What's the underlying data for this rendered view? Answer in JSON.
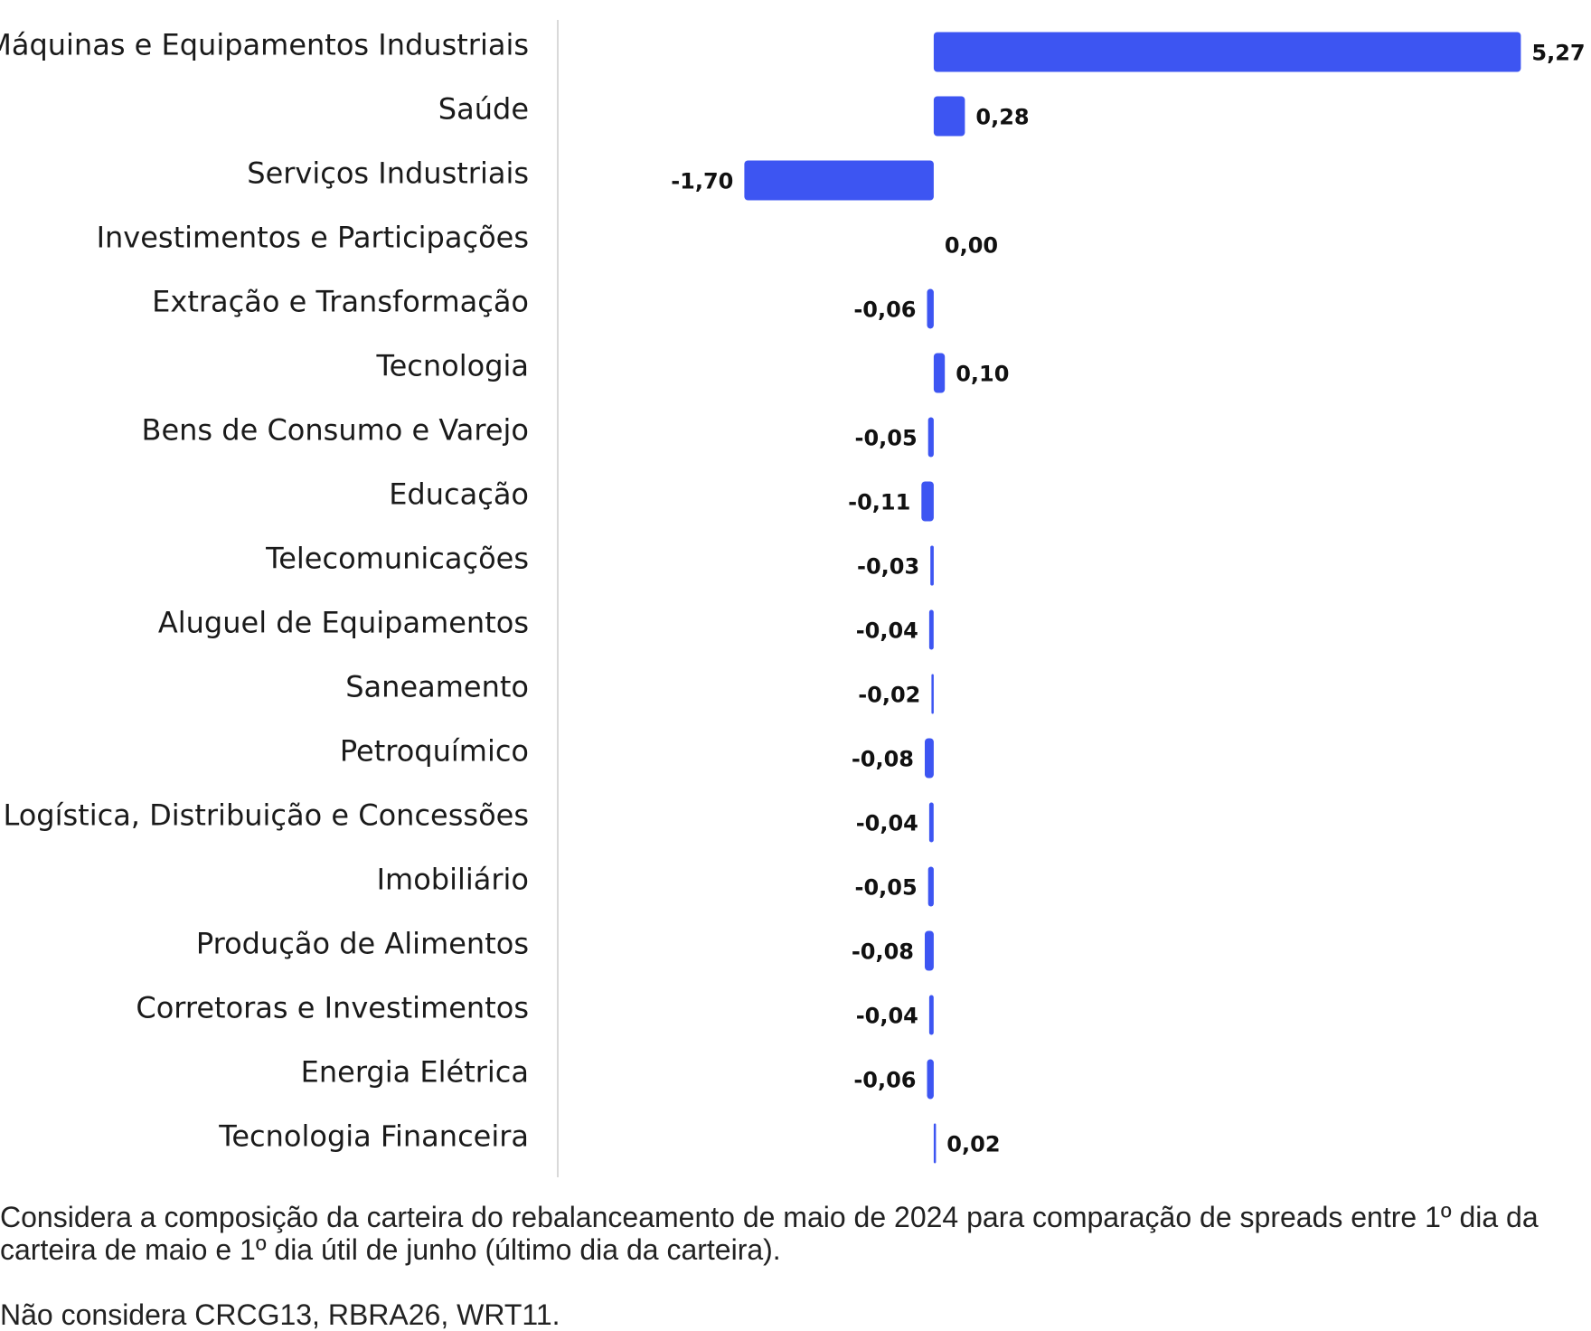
{
  "chart_data": {
    "type": "bar",
    "orientation": "horizontal",
    "title": "",
    "xlabel": "",
    "ylabel": "",
    "bar_color": "#3d55f2",
    "axis_color": "#d9d9d9",
    "xlim": [
      -3.35,
      5.9
    ],
    "categories": [
      "Máquinas e Equipamentos Industriais",
      "Saúde",
      "Serviços Industriais",
      "Investimentos e Participações",
      "Extração e Transformação",
      "Tecnologia",
      "Bens de Consumo e Varejo",
      "Educação",
      "Telecomunicações",
      "Aluguel de Equipamentos",
      "Saneamento",
      "Petroquímico",
      "Logística, Distribuição e Concessões",
      "Imobiliário",
      "Produção de Alimentos",
      "Corretoras e Investimentos",
      "Energia Elétrica",
      "Tecnologia Financeira"
    ],
    "values": [
      5.27,
      0.28,
      -1.7,
      0.0,
      -0.06,
      0.1,
      -0.05,
      -0.11,
      -0.03,
      -0.04,
      -0.02,
      -0.08,
      -0.04,
      -0.05,
      -0.08,
      -0.04,
      -0.06,
      0.02
    ],
    "value_labels": [
      "5,27",
      "0,28",
      "-1,70",
      "0,00",
      "-0,06",
      "0,10",
      "-0,05",
      "-0,11",
      "-0,03",
      "-0,04",
      "-0,02",
      "-0,08",
      "-0,04",
      "-0,05",
      "-0,08",
      "-0,04",
      "-0,06",
      "0,02"
    ]
  },
  "notes": {
    "line1": "Considera a composição da carteira do rebalanceamento de maio de 2024 para comparação de spreads entre 1º dia da carteira de maio e 1º dia útil de junho (último dia da carteira).",
    "line2": "Não considera CRCG13, RBRA26, WRT11."
  }
}
